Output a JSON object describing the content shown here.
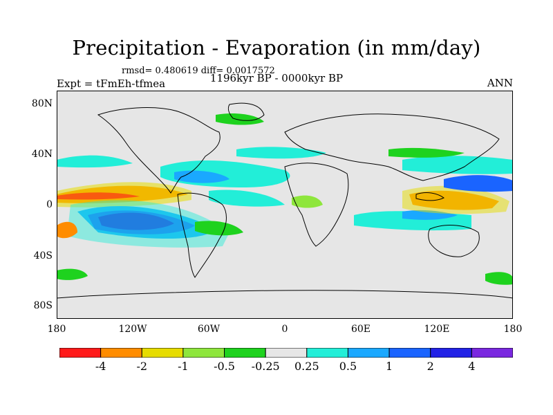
{
  "title": "Precipitation - Evaporation (in mm/day)",
  "stats": "rmsd= 0.480619 diff= 0.0017572",
  "experiment": "Expt = tFmEh-tfmea",
  "period": "1196kyr BP - 0000kyr BP",
  "season": "ANN",
  "axes": {
    "lat_ticks": [
      "80N",
      "40N",
      "0",
      "40S",
      "80S"
    ],
    "lon_ticks": [
      "180",
      "120W",
      "60W",
      "0",
      "60E",
      "120E",
      "180"
    ]
  },
  "colorbar": {
    "labels": [
      "-4",
      "-2",
      "-1",
      "-0.5",
      "-0.25",
      "0.25",
      "0.5",
      "1",
      "2",
      "4"
    ],
    "colors": [
      "#ff1a1a",
      "#ff8c00",
      "#e6dc00",
      "#8ee63c",
      "#1ed21e",
      "#e6e6e6",
      "#22eed8",
      "#1aa8ff",
      "#1a64ff",
      "#2222e6",
      "#7a28e0"
    ]
  },
  "palette": {
    "land_bg": "#e6e6e6",
    "coast": "#000000"
  }
}
